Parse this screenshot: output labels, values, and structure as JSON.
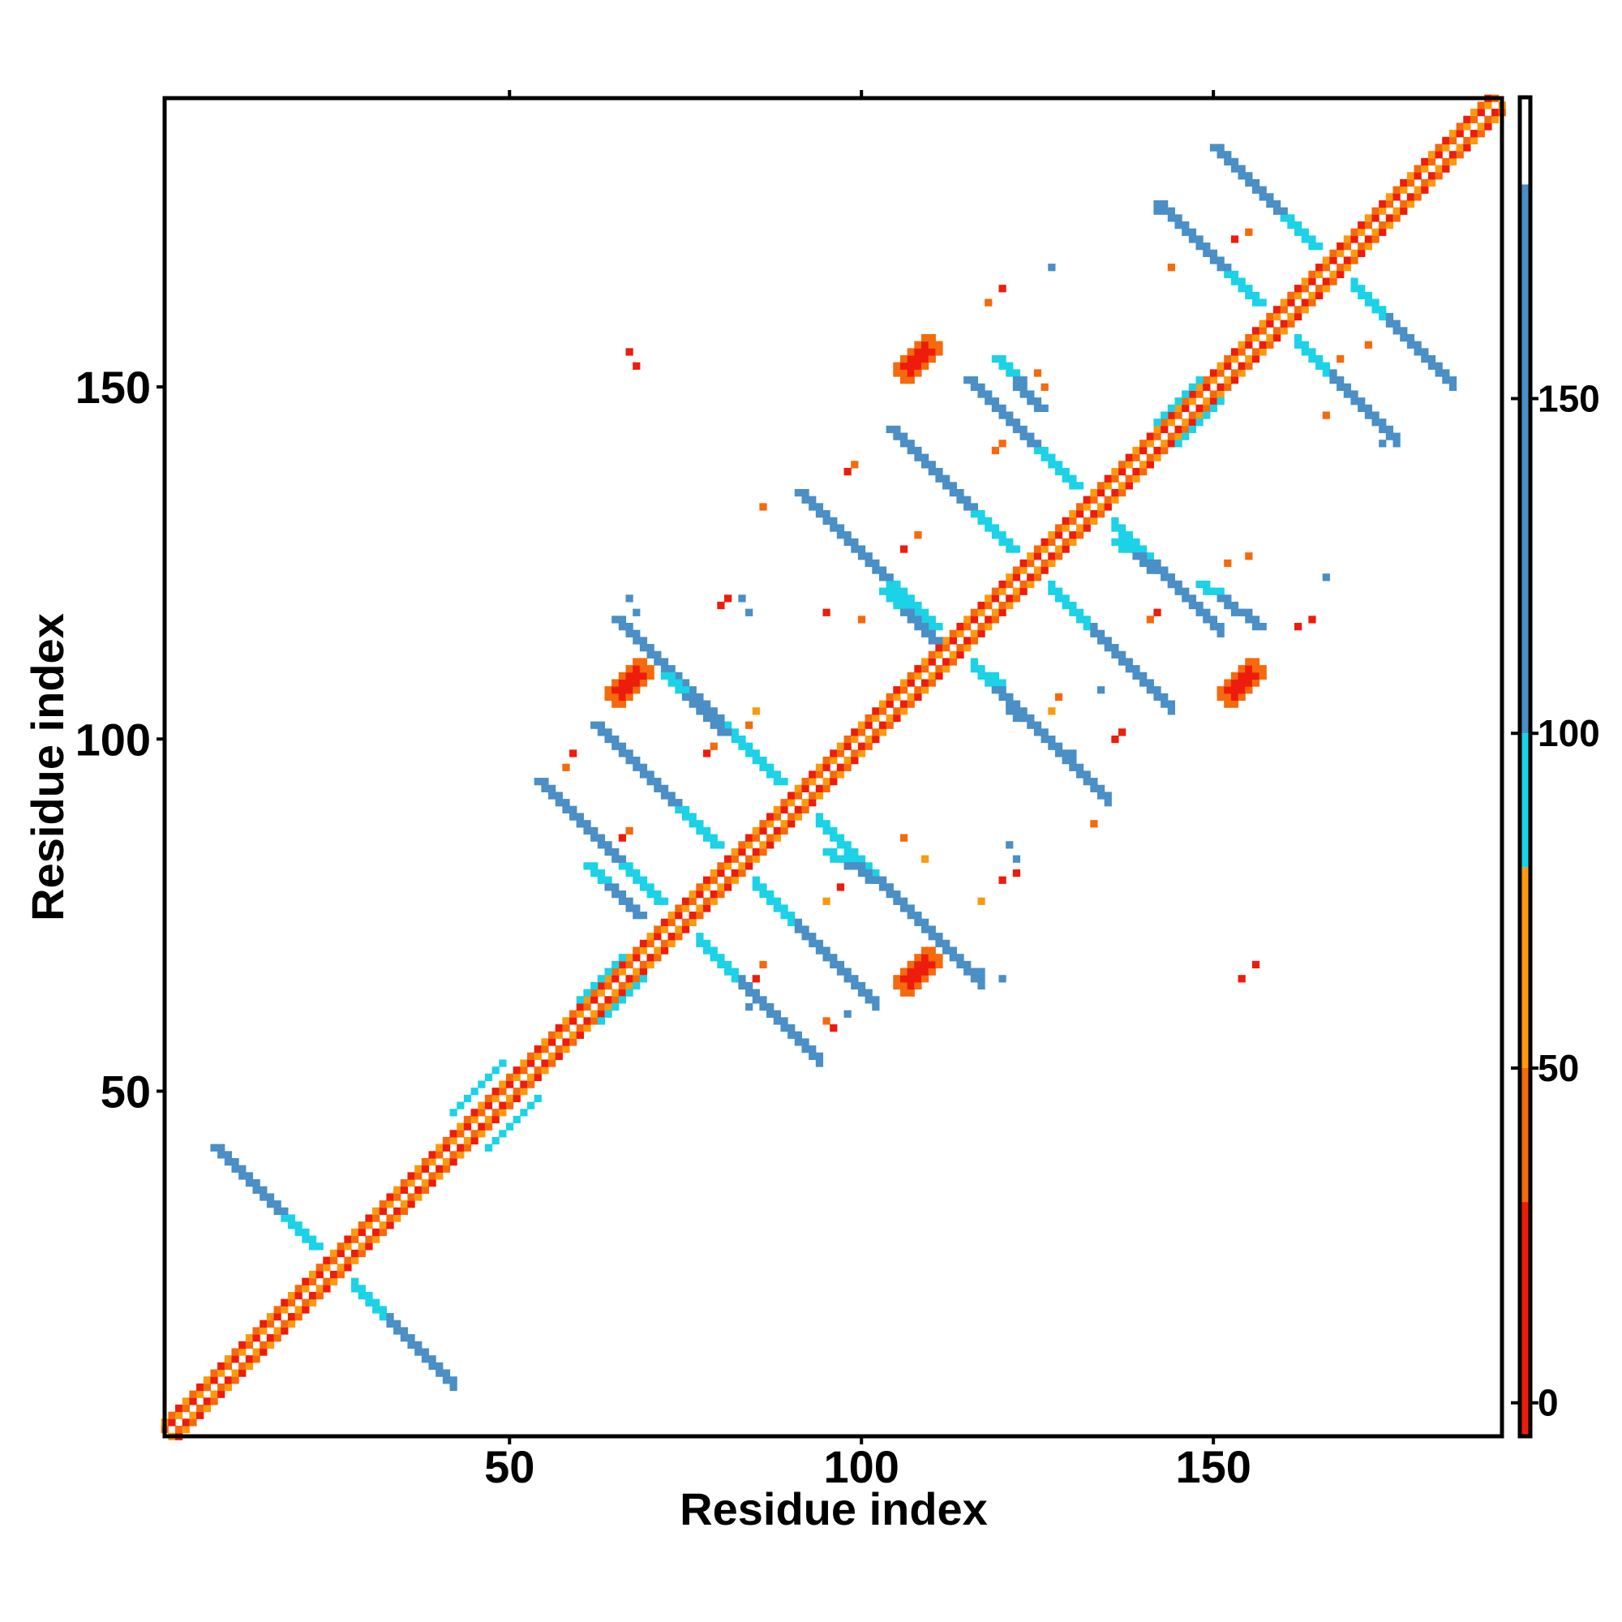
{
  "chart_data": {
    "type": "heatmap",
    "title": "",
    "xlabel": "Residue index",
    "ylabel": "Residue index",
    "xlim": [
      1,
      191
    ],
    "ylim": [
      1,
      191
    ],
    "x_ticks": [
      50,
      100,
      150
    ],
    "y_ticks": [
      50,
      100,
      150
    ],
    "colorbar": {
      "ticks": [
        0,
        50,
        100,
        150
      ],
      "range": [
        -5,
        195
      ],
      "bands": [
        {
          "from": -5,
          "to": 30,
          "color": "#ee1c0c"
        },
        {
          "from": 30,
          "to": 50,
          "color": "#f56a0c"
        },
        {
          "from": 50,
          "to": 80,
          "color": "#fb9a0e"
        },
        {
          "from": 80,
          "to": 100,
          "color": "#1cd2e6"
        },
        {
          "from": 100,
          "to": 182,
          "color": "#4a8fc6"
        },
        {
          "from": 182,
          "to": 195,
          "color": "#ffffff"
        }
      ]
    },
    "diagonal": {
      "from": 1,
      "to": 191,
      "colors": [
        "#ee1c0c",
        "#fb9a0e",
        "#f56a0c"
      ]
    },
    "anti_diagonal_features": [
      {
        "cx": 25,
        "cy": 25,
        "len": 17,
        "color": "#4a8fc6"
      },
      {
        "cx": 74,
        "cy": 74,
        "len": 20,
        "color": "#4a8fc6"
      },
      {
        "cx": 82,
        "cy": 82,
        "len": 20,
        "color": "#4a8fc6"
      },
      {
        "cx": 91,
        "cy": 91,
        "len": 26,
        "color": "#4a8fc6"
      },
      {
        "cx": 113,
        "cy": 113,
        "len": 22,
        "color": "#4a8fc6"
      },
      {
        "cx": 124,
        "cy": 124,
        "len": 20,
        "color": "#4a8fc6"
      },
      {
        "cx": 133,
        "cy": 133,
        "len": 18,
        "color": "#4a8fc6"
      },
      {
        "cx": 159,
        "cy": 159,
        "len": 17,
        "color": "#4a8fc6"
      },
      {
        "cx": 167,
        "cy": 167,
        "len": 17,
        "color": "#4a8fc6"
      }
    ],
    "parallel_features": [
      {
        "x1": 42,
        "y1": 47,
        "x2": 49,
        "y2": 54,
        "color": "#1cd2e6"
      },
      {
        "x1": 60,
        "y1": 63,
        "x2": 66,
        "y2": 69,
        "color": "#1cd2e6"
      },
      {
        "x1": 142,
        "y1": 145,
        "x2": 148,
        "y2": 151,
        "color": "#1cd2e6"
      }
    ],
    "off_diagonal_segments": [
      {
        "x1": 61,
        "y1": 82,
        "x2": 68,
        "y2": 75,
        "color": "#4a8fc6"
      },
      {
        "x1": 72,
        "y1": 109,
        "x2": 80,
        "y2": 101,
        "color": "#4a8fc6"
      },
      {
        "x1": 95,
        "y1": 84,
        "x2": 103,
        "y2": 79,
        "color": "#4a8fc6"
      },
      {
        "x1": 103,
        "y1": 121,
        "x2": 110,
        "y2": 114,
        "color": "#4a8fc6"
      },
      {
        "x1": 118,
        "y1": 109,
        "x2": 122,
        "y2": 103,
        "color": "#4a8fc6"
      },
      {
        "x1": 119,
        "y1": 154,
        "x2": 125,
        "y2": 147,
        "color": "#4a8fc6"
      },
      {
        "x1": 136,
        "y1": 128,
        "x2": 144,
        "y2": 122,
        "color": "#4a8fc6"
      },
      {
        "x1": 148,
        "y1": 122,
        "x2": 156,
        "y2": 116,
        "color": "#4a8fc6"
      }
    ],
    "contact_blobs": [
      {
        "x": 67,
        "y": 108,
        "color": "#ee1c0c"
      },
      {
        "x": 108,
        "y": 154,
        "color": "#ee1c0c"
      },
      {
        "x": 108,
        "y": 67,
        "color": "#ee1c0c"
      },
      {
        "x": 154,
        "y": 108,
        "color": "#ee1c0c"
      }
    ],
    "sparse_points": [
      {
        "x": 68,
        "y": 153,
        "color": "#ee1c0c"
      },
      {
        "x": 67,
        "y": 155,
        "color": "#ee1c0c"
      },
      {
        "x": 120,
        "y": 164,
        "color": "#ee1c0c"
      },
      {
        "x": 118,
        "y": 162,
        "color": "#f56a0c"
      },
      {
        "x": 125,
        "y": 152,
        "color": "#f56a0c"
      },
      {
        "x": 126,
        "y": 150,
        "color": "#f56a0c"
      },
      {
        "x": 120,
        "y": 142,
        "color": "#f56a0c"
      },
      {
        "x": 119,
        "y": 141,
        "color": "#f56a0c"
      },
      {
        "x": 99,
        "y": 139,
        "color": "#f56a0c"
      },
      {
        "x": 98,
        "y": 138,
        "color": "#ee1c0c"
      },
      {
        "x": 86,
        "y": 133,
        "color": "#f56a0c"
      },
      {
        "x": 108,
        "y": 129,
        "color": "#f56a0c"
      },
      {
        "x": 106,
        "y": 127,
        "color": "#ee1c0c"
      },
      {
        "x": 80,
        "y": 119,
        "color": "#ee1c0c"
      },
      {
        "x": 81,
        "y": 120,
        "color": "#ee1c0c"
      },
      {
        "x": 83,
        "y": 120,
        "color": "#4a8fc6"
      },
      {
        "x": 84,
        "y": 118,
        "color": "#4a8fc6"
      },
      {
        "x": 68,
        "y": 118,
        "color": "#4a8fc6"
      },
      {
        "x": 67,
        "y": 120,
        "color": "#4a8fc6"
      },
      {
        "x": 101,
        "y": 125,
        "color": "#4a8fc6"
      },
      {
        "x": 95,
        "y": 118,
        "color": "#ee1c0c"
      },
      {
        "x": 100,
        "y": 117,
        "color": "#f56a0c"
      },
      {
        "x": 59,
        "y": 98,
        "color": "#ee1c0c"
      },
      {
        "x": 58,
        "y": 96,
        "color": "#f56a0c"
      },
      {
        "x": 59,
        "y": 90,
        "color": "#4a8fc6"
      },
      {
        "x": 60,
        "y": 88,
        "color": "#4a8fc6"
      },
      {
        "x": 67,
        "y": 87,
        "color": "#f56a0c"
      },
      {
        "x": 66,
        "y": 86,
        "color": "#ee1c0c"
      },
      {
        "x": 78,
        "y": 98,
        "color": "#ee1c0c"
      },
      {
        "x": 79,
        "y": 99,
        "color": "#f56a0c"
      },
      {
        "x": 85,
        "y": 104,
        "color": "#fb9a0e"
      },
      {
        "x": 84,
        "y": 102,
        "color": "#f56a0c"
      },
      {
        "x": 86,
        "y": 68,
        "color": "#f56a0c"
      },
      {
        "x": 85,
        "y": 66,
        "color": "#ee1c0c"
      },
      {
        "x": 84,
        "y": 62,
        "color": "#4a8fc6"
      },
      {
        "x": 87,
        "y": 61,
        "color": "#4a8fc6"
      },
      {
        "x": 95,
        "y": 60,
        "color": "#f56a0c"
      },
      {
        "x": 96,
        "y": 59,
        "color": "#ee1c0c"
      },
      {
        "x": 98,
        "y": 61,
        "color": "#4a8fc6"
      },
      {
        "x": 95,
        "y": 77,
        "color": "#fb9a0e"
      },
      {
        "x": 97,
        "y": 79,
        "color": "#ee1c0c"
      },
      {
        "x": 106,
        "y": 86,
        "color": "#f56a0c"
      },
      {
        "x": 109,
        "y": 83,
        "color": "#fb9a0e"
      },
      {
        "x": 117,
        "y": 67,
        "color": "#4a8fc6"
      },
      {
        "x": 120,
        "y": 66,
        "color": "#4a8fc6"
      },
      {
        "x": 117,
        "y": 77,
        "color": "#fb9a0e"
      },
      {
        "x": 120,
        "y": 80,
        "color": "#ee1c0c"
      },
      {
        "x": 122,
        "y": 81,
        "color": "#ee1c0c"
      },
      {
        "x": 121,
        "y": 85,
        "color": "#4a8fc6"
      },
      {
        "x": 122,
        "y": 83,
        "color": "#4a8fc6"
      },
      {
        "x": 128,
        "y": 106,
        "color": "#f56a0c"
      },
      {
        "x": 127,
        "y": 104,
        "color": "#fb9a0e"
      },
      {
        "x": 130,
        "y": 98,
        "color": "#4a8fc6"
      },
      {
        "x": 136,
        "y": 100,
        "color": "#ee1c0c"
      },
      {
        "x": 137,
        "y": 101,
        "color": "#ee1c0c"
      },
      {
        "x": 133,
        "y": 88,
        "color": "#f56a0c"
      },
      {
        "x": 141,
        "y": 117,
        "color": "#f56a0c"
      },
      {
        "x": 142,
        "y": 118,
        "color": "#ee1c0c"
      },
      {
        "x": 152,
        "y": 125,
        "color": "#f56a0c"
      },
      {
        "x": 155,
        "y": 126,
        "color": "#f56a0c"
      },
      {
        "x": 162,
        "y": 116,
        "color": "#ee1c0c"
      },
      {
        "x": 164,
        "y": 117,
        "color": "#ee1c0c"
      },
      {
        "x": 166,
        "y": 123,
        "color": "#4a8fc6"
      },
      {
        "x": 168,
        "y": 154,
        "color": "#f56a0c"
      },
      {
        "x": 166,
        "y": 146,
        "color": "#f56a0c"
      },
      {
        "x": 174,
        "y": 142,
        "color": "#4a8fc6"
      },
      {
        "x": 142,
        "y": 175,
        "color": "#4a8fc6"
      },
      {
        "x": 144,
        "y": 167,
        "color": "#f56a0c"
      },
      {
        "x": 155,
        "y": 172,
        "color": "#f56a0c"
      },
      {
        "x": 153,
        "y": 171,
        "color": "#ee1c0c"
      },
      {
        "x": 127,
        "y": 167,
        "color": "#4a8fc6"
      },
      {
        "x": 172,
        "y": 156,
        "color": "#f56a0c"
      },
      {
        "x": 156,
        "y": 68,
        "color": "#ee1c0c"
      },
      {
        "x": 154,
        "y": 66,
        "color": "#ee1c0c"
      },
      {
        "x": 134,
        "y": 107,
        "color": "#4a8fc6"
      }
    ]
  }
}
